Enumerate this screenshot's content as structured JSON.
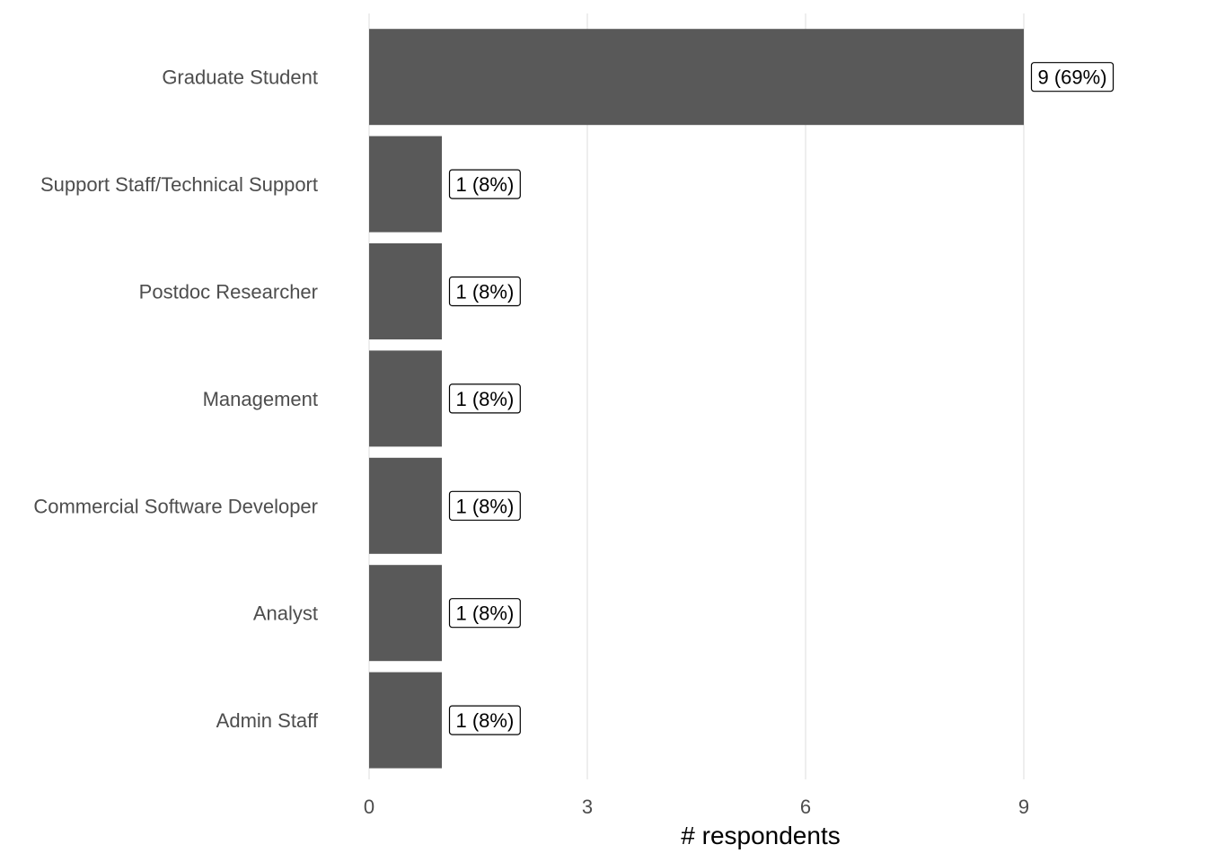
{
  "chart_data": {
    "type": "bar",
    "orientation": "horizontal",
    "categories": [
      "Graduate Student",
      "Support Staff/Technical Support",
      "Postdoc Researcher",
      "Management",
      "Commercial Software Developer",
      "Analyst",
      "Admin Staff"
    ],
    "values": [
      9,
      1,
      1,
      1,
      1,
      1,
      1
    ],
    "data_labels": [
      "9 (69%)",
      "1 (8%)",
      "1 (8%)",
      "1 (8%)",
      "1 (8%)",
      "1 (8%)",
      "1 (8%)"
    ],
    "xlabel": "# respondents",
    "ylabel": "",
    "title": "",
    "xlim": [
      0,
      9
    ],
    "xticks": [
      0,
      3,
      6,
      9
    ],
    "xtick_labels": [
      "0",
      "3",
      "6",
      "9"
    ],
    "grid": "vertical-major",
    "bar_color": "#595959",
    "grid_color": "#e6e6e6"
  }
}
